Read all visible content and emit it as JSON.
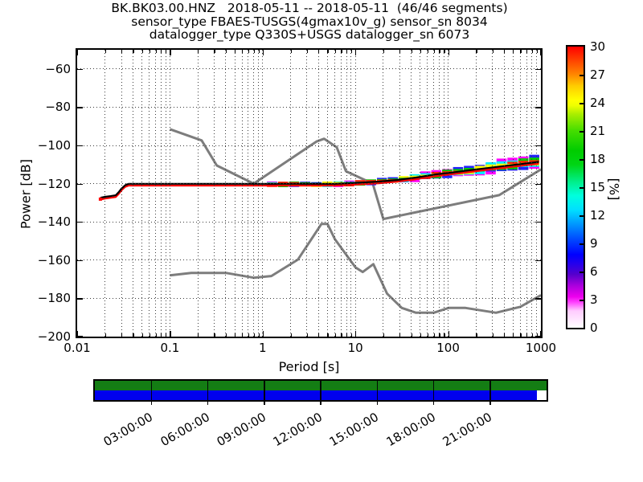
{
  "title": {
    "line1": "BK.BK03.00.HNZ   2018-05-11 -- 2018-05-11  (46/46 segments)",
    "line2": "sensor_type FBAES-TUSGS(4gmax10v_g) sensor_sn 8034",
    "line3": "datalogger_type Q330S+USGS datalogger_sn 6073"
  },
  "axes": {
    "x_label": "Period [s]",
    "y_label": "Power [dB]",
    "x_scale": "log",
    "x_range": [
      0.01,
      1000
    ],
    "y_range": [
      -200,
      -50
    ],
    "x_ticks": [
      {
        "label": "0.01",
        "value": 0.01
      },
      {
        "label": "0.1",
        "value": 0.1
      },
      {
        "label": "1",
        "value": 1
      },
      {
        "label": "10",
        "value": 10
      },
      {
        "label": "100",
        "value": 100
      },
      {
        "label": "1000",
        "value": 1000
      }
    ],
    "y_ticks": [
      {
        "label": "−60",
        "value": -60
      },
      {
        "label": "−80",
        "value": -80
      },
      {
        "label": "−100",
        "value": -100
      },
      {
        "label": "−120",
        "value": -120
      },
      {
        "label": "−140",
        "value": -140
      },
      {
        "label": "−160",
        "value": -160
      },
      {
        "label": "−180",
        "value": -180
      },
      {
        "label": "−200",
        "value": -200
      }
    ],
    "grid": "dotted, major dB lines and major+minor log-period lines"
  },
  "colorbar": {
    "label": "[%]",
    "range": [
      0,
      30
    ],
    "ticks": [
      30,
      27,
      24,
      21,
      18,
      15,
      12,
      9,
      6,
      3,
      0
    ],
    "colors_bottom_to_top": [
      "#ffffff",
      "#ff00ff",
      "#5500cc",
      "#0000ff",
      "#00e0ff",
      "#00ee88",
      "#00cc00",
      "#ffff00",
      "#ff8800",
      "#ff0000"
    ]
  },
  "timeline": {
    "description": "24h data coverage bar for 2018-05-11",
    "green_color": "#147d14",
    "blue_color": "#0000ee",
    "gap_fraction_of_width": 0.978,
    "tick_labels": [
      "03:00:00",
      "06:00:00",
      "09:00:00",
      "12:00:00",
      "15:00:00",
      "18:00:00",
      "21:00:00"
    ]
  },
  "chart_data": {
    "type": "heatmap",
    "title": "PPSD probabilistic power spectral density histogram",
    "xlabel": "Period [s]",
    "ylabel": "Power [dB]",
    "x_scale": "log",
    "xlim": [
      0.01,
      1000
    ],
    "ylim": [
      -200,
      -50
    ],
    "colorbar_label": "[%]",
    "colorbar_range": [
      0,
      30
    ],
    "noise_model_color": "#7d7d7d",
    "mode_line_colors": [
      "#000000",
      "#ff0000"
    ],
    "noise_model_high_db_vs_period": [
      [
        0.1,
        -91.5
      ],
      [
        0.22,
        -97.4
      ],
      [
        0.32,
        -110.5
      ],
      [
        0.8,
        -120.0
      ],
      [
        3.8,
        -98.0
      ],
      [
        4.6,
        -96.5
      ],
      [
        6.3,
        -101.0
      ],
      [
        7.9,
        -113.5
      ],
      [
        15.4,
        -120.0
      ],
      [
        20.0,
        -138.5
      ],
      [
        354.8,
        -126.0
      ],
      [
        1000,
        -112.5
      ]
    ],
    "noise_model_low_db_vs_period": [
      [
        0.1,
        -168.0
      ],
      [
        0.17,
        -166.7
      ],
      [
        0.4,
        -166.7
      ],
      [
        0.8,
        -169.2
      ],
      [
        1.24,
        -168.3
      ],
      [
        2.4,
        -159.7
      ],
      [
        4.3,
        -141.1
      ],
      [
        5.0,
        -141.1
      ],
      [
        6.0,
        -149.0
      ],
      [
        10.0,
        -163.8
      ],
      [
        12.0,
        -166.2
      ],
      [
        15.6,
        -162.1
      ],
      [
        21.9,
        -177.5
      ],
      [
        31.6,
        -185.0
      ],
      [
        45.0,
        -187.5
      ],
      [
        70.0,
        -187.5
      ],
      [
        101.0,
        -185.0
      ],
      [
        154.0,
        -185.0
      ],
      [
        328.0,
        -187.5
      ],
      [
        600.0,
        -184.4
      ],
      [
        1000,
        -178.3
      ]
    ],
    "mode_line_db_vs_period": [
      [
        0.0178,
        -127.4
      ],
      [
        0.02,
        -126.9
      ],
      [
        0.023,
        -126.5
      ],
      [
        0.026,
        -126.1
      ],
      [
        0.028,
        -124.5
      ],
      [
        0.03,
        -122.6
      ],
      [
        0.033,
        -120.8
      ],
      [
        0.036,
        -120.1
      ],
      [
        6,
        -120.1
      ],
      [
        9,
        -119.7
      ],
      [
        12,
        -119.4
      ],
      [
        18,
        -118.9
      ],
      [
        28,
        -118.1
      ],
      [
        45,
        -116.8
      ],
      [
        70,
        -115.3
      ],
      [
        110,
        -114.2
      ],
      [
        170,
        -113.0
      ],
      [
        260,
        -111.9
      ],
      [
        400,
        -110.8
      ],
      [
        600,
        -109.8
      ],
      [
        950,
        -108.6
      ]
    ],
    "histogram_band_segments": [
      {
        "p0": 1.1,
        "p1": 1.45,
        "db": -120.3,
        "s": 0.45
      },
      {
        "p0": 1.45,
        "p1": 1.9,
        "db": -120.4,
        "s": 0.5
      },
      {
        "p0": 1.9,
        "p1": 2.5,
        "db": -120.3,
        "s": 0.45
      },
      {
        "p0": 2.5,
        "p1": 3.3,
        "db": -120.4,
        "s": 0.5
      },
      {
        "p0": 3.3,
        "p1": 4.35,
        "db": -120.3,
        "s": 0.5
      },
      {
        "p0": 4.35,
        "p1": 5.7,
        "db": -120.3,
        "s": 0.55
      },
      {
        "p0": 5.7,
        "p1": 7.5,
        "db": -120.2,
        "s": 0.55
      },
      {
        "p0": 7.5,
        "p1": 9.8,
        "db": -120.0,
        "s": 0.6
      },
      {
        "p0": 9.8,
        "p1": 12.9,
        "db": -119.6,
        "s": 0.7
      },
      {
        "p0": 12.9,
        "p1": 16.9,
        "db": -119.2,
        "s": 0.8
      },
      {
        "p0": 16.9,
        "p1": 22.1,
        "db": -118.7,
        "s": 0.9
      },
      {
        "p0": 22.1,
        "p1": 29.0,
        "db": -118.1,
        "s": 1.0
      },
      {
        "p0": 29.0,
        "p1": 38.0,
        "db": -117.5,
        "s": 1.2
      },
      {
        "p0": 38.0,
        "p1": 49.7,
        "db": -116.9,
        "s": 1.3
      },
      {
        "p0": 49.7,
        "p1": 65.1,
        "db": -116.1,
        "s": 1.5
      },
      {
        "p0": 65.1,
        "p1": 85.3,
        "db": -115.3,
        "s": 1.7
      },
      {
        "p0": 85.3,
        "p1": 111.7,
        "db": -114.6,
        "s": 1.9
      },
      {
        "p0": 111.7,
        "p1": 146.3,
        "db": -114.0,
        "s": 2.1
      },
      {
        "p0": 146.3,
        "p1": 191.7,
        "db": -113.2,
        "s": 2.3
      },
      {
        "p0": 191.7,
        "p1": 251.1,
        "db": -112.5,
        "s": 2.5
      },
      {
        "p0": 251.1,
        "p1": 329.0,
        "db": -111.5,
        "s": 2.7
      },
      {
        "p0": 329.0,
        "p1": 431.0,
        "db": -110.8,
        "s": 2.9
      },
      {
        "p0": 431.0,
        "p1": 564.6,
        "db": -110.1,
        "s": 3.0
      },
      {
        "p0": 564.6,
        "p1": 739.6,
        "db": -109.3,
        "s": 3.2
      },
      {
        "p0": 739.6,
        "p1": 968.9,
        "db": -108.7,
        "s": 3.5
      }
    ],
    "band_color_order_center_to_edge": [
      "#ff2200",
      "#ffff00",
      "#00cc00",
      "#00eeff",
      "#2222ff",
      "#ff00ff"
    ]
  }
}
